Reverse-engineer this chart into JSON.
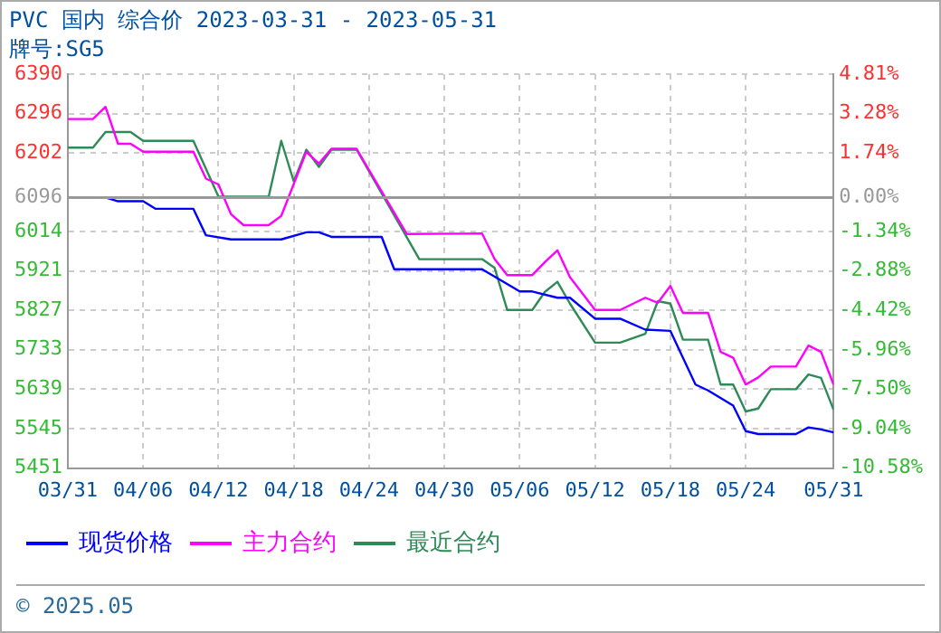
{
  "chart_data": {
    "type": "line",
    "title": "PVC 国内 综合价 2023-03-31 - 2023-05-31",
    "subtitle": "牌号:SG5",
    "xlim": [
      "2023-03-31",
      "2023-05-31"
    ],
    "xticks": [
      {
        "value": "2023-03-31",
        "label": "03/31"
      },
      {
        "value": "2023-04-06",
        "label": "04/06"
      },
      {
        "value": "2023-04-12",
        "label": "04/12"
      },
      {
        "value": "2023-04-18",
        "label": "04/18"
      },
      {
        "value": "2023-04-24",
        "label": "04/24"
      },
      {
        "value": "2023-04-30",
        "label": "04/30"
      },
      {
        "value": "2023-05-06",
        "label": "05/06"
      },
      {
        "value": "2023-05-12",
        "label": "05/12"
      },
      {
        "value": "2023-05-18",
        "label": "05/18"
      },
      {
        "value": "2023-05-24",
        "label": "05/24"
      },
      {
        "value": "2023-05-31",
        "label": "05/31"
      }
    ],
    "ylim": [
      5451,
      6390
    ],
    "yticks": [
      5451,
      5545,
      5639,
      5733,
      5827,
      5921,
      6014,
      6096,
      6202,
      6296,
      6390
    ],
    "y2lim": [
      -10.58,
      4.81
    ],
    "y2ticks": [
      {
        "value": -10.58,
        "label": "-10.58%"
      },
      {
        "value": -9.04,
        "label": "-9.04%"
      },
      {
        "value": -7.5,
        "label": "-7.50%"
      },
      {
        "value": -5.96,
        "label": "-5.96%"
      },
      {
        "value": -4.42,
        "label": "-4.42%"
      },
      {
        "value": -2.88,
        "label": "-2.88%"
      },
      {
        "value": -1.34,
        "label": "-1.34%"
      },
      {
        "value": 0,
        "label": "0.00%"
      },
      {
        "value": 1.74,
        "label": "1.74%"
      },
      {
        "value": 3.28,
        "label": "3.28%"
      },
      {
        "value": 4.81,
        "label": "4.81%"
      }
    ],
    "ref_lines": [
      {
        "axis": "y",
        "value": 6096,
        "color": "#999999"
      }
    ],
    "grid": true,
    "legend": "bottom",
    "marker": "none",
    "line_style": "solid",
    "annotations": [
      "© 2025.05"
    ],
    "series": [
      {
        "name": "现货价格",
        "color": "#0000ff",
        "x": [
          "2023-03-31",
          "2023-04-03",
          "2023-04-04",
          "2023-04-06",
          "2023-04-07",
          "2023-04-10",
          "2023-04-11",
          "2023-04-13",
          "2023-04-17",
          "2023-04-19",
          "2023-04-20",
          "2023-04-21",
          "2023-04-25",
          "2023-04-26",
          "2023-05-03",
          "2023-05-06",
          "2023-05-07",
          "2023-05-09",
          "2023-05-10",
          "2023-05-12",
          "2023-05-14",
          "2023-05-16",
          "2023-05-18",
          "2023-05-20",
          "2023-05-21",
          "2023-05-23",
          "2023-05-24",
          "2023-05-25",
          "2023-05-28",
          "2023-05-29",
          "2023-05-30",
          "2023-05-31"
        ],
        "values": [
          6096,
          6096,
          6087,
          6087,
          6069,
          6069,
          6006,
          5996,
          5996,
          6013,
          6013,
          6002,
          6002,
          5925,
          5925,
          5872,
          5872,
          5857,
          5857,
          5807,
          5807,
          5781,
          5778,
          5650,
          5636,
          5600,
          5539,
          5532,
          5532,
          5548,
          5543,
          5536
        ]
      },
      {
        "name": "主力合约",
        "color": "#ff00ff",
        "x": [
          "2023-03-31",
          "2023-04-02",
          "2023-04-03",
          "2023-04-04",
          "2023-04-05",
          "2023-04-06",
          "2023-04-10",
          "2023-04-11",
          "2023-04-12",
          "2023-04-13",
          "2023-04-14",
          "2023-04-16",
          "2023-04-17",
          "2023-04-19",
          "2023-04-20",
          "2023-04-21",
          "2023-04-23",
          "2023-04-27",
          "2023-05-03",
          "2023-05-04",
          "2023-05-05",
          "2023-05-07",
          "2023-05-08",
          "2023-05-09",
          "2023-05-10",
          "2023-05-12",
          "2023-05-14",
          "2023-05-16",
          "2023-05-17",
          "2023-05-18",
          "2023-05-19",
          "2023-05-21",
          "2023-05-22",
          "2023-05-23",
          "2023-05-24",
          "2023-05-25",
          "2023-05-26",
          "2023-05-28",
          "2023-05-29",
          "2023-05-30",
          "2023-05-31"
        ],
        "values": [
          6283,
          6283,
          6312,
          6224,
          6224,
          6205,
          6205,
          6141,
          6127,
          6056,
          6030,
          6030,
          6052,
          6205,
          6177,
          6212,
          6212,
          6009,
          6010,
          5949,
          5911,
          5911,
          5942,
          5970,
          5906,
          5828,
          5828,
          5857,
          5845,
          5885,
          5821,
          5821,
          5728,
          5714,
          5650,
          5667,
          5693,
          5693,
          5743,
          5728,
          5650
        ]
      },
      {
        "name": "最近合约",
        "color": "#2e8b57",
        "x": [
          "2023-03-31",
          "2023-04-02",
          "2023-04-03",
          "2023-04-05",
          "2023-04-06",
          "2023-04-10",
          "2023-04-12",
          "2023-04-16",
          "2023-04-17",
          "2023-04-18",
          "2023-04-19",
          "2023-04-20",
          "2023-04-21",
          "2023-04-23",
          "2023-04-28",
          "2023-05-03",
          "2023-05-04",
          "2023-05-05",
          "2023-05-07",
          "2023-05-08",
          "2023-05-09",
          "2023-05-10",
          "2023-05-12",
          "2023-05-14",
          "2023-05-16",
          "2023-05-17",
          "2023-05-18",
          "2023-05-19",
          "2023-05-21",
          "2023-05-22",
          "2023-05-23",
          "2023-05-24",
          "2023-05-25",
          "2023-05-26",
          "2023-05-28",
          "2023-05-29",
          "2023-05-30",
          "2023-05-31"
        ],
        "values": [
          6215,
          6215,
          6252,
          6252,
          6231,
          6231,
          6098,
          6098,
          6231,
          6134,
          6210,
          6169,
          6210,
          6210,
          5949,
          5949,
          5928,
          5828,
          5828,
          5871,
          5895,
          5843,
          5750,
          5750,
          5771,
          5849,
          5843,
          5757,
          5757,
          5650,
          5650,
          5586,
          5593,
          5639,
          5639,
          5674,
          5666,
          5590
        ]
      }
    ]
  }
}
